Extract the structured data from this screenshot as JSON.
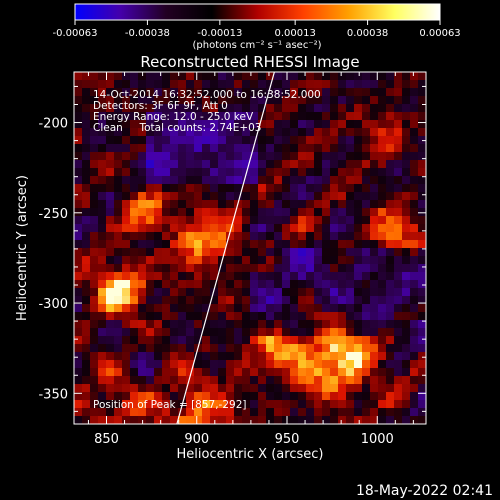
{
  "chart_data": {
    "type": "heatmap",
    "title": "Reconstructed RHESSI Image",
    "xlabel": "Heliocentric X (arcsec)",
    "ylabel": "Heliocentric Y (arcsec)",
    "xlim": [
      832,
      1027
    ],
    "ylim": [
      -367,
      -172
    ],
    "x_ticks": [
      "850",
      "900",
      "950",
      "1000"
    ],
    "x_tick_values": [
      850,
      900,
      950,
      1000
    ],
    "y_ticks": [
      "-200",
      "-250",
      "-300",
      "-350"
    ],
    "y_tick_values": [
      -200,
      -250,
      -300,
      -350
    ],
    "colorbar": {
      "min": -0.00063,
      "max": 0.00063,
      "ticks": [
        "-0.00063",
        "-0.00038",
        "-0.00013",
        "0.00013",
        "0.00038",
        "0.00063"
      ],
      "tick_values": [
        -0.00063,
        -0.00038,
        -0.00013,
        0.00013,
        0.00038,
        0.00063
      ],
      "units": "(photons cm⁻² s⁻¹ asec⁻²)",
      "colors": [
        "#0000ff",
        "#4400aa",
        "#220022",
        "#000000",
        "#b00000",
        "#ff4000",
        "#ffa000",
        "#ffff60",
        "#ffffff"
      ]
    },
    "annotations": [
      "14-Oct-2014 16:32:52.000 to 16:38:52.000",
      "Detectors: 3F 6F 9F, Att 0",
      "Energy Range: 12.0 - 25.0 keV",
      "Clean     Total counts: 2.74E+03",
      "Position of Peak = [857,-292]"
    ],
    "peak_position": [
      857,
      -292
    ],
    "limb_line": [
      [
        889,
        -367
      ],
      [
        943,
        -172
      ]
    ],
    "grid": false
  },
  "footer": {
    "timestamp": "18-May-2022 02:41"
  }
}
